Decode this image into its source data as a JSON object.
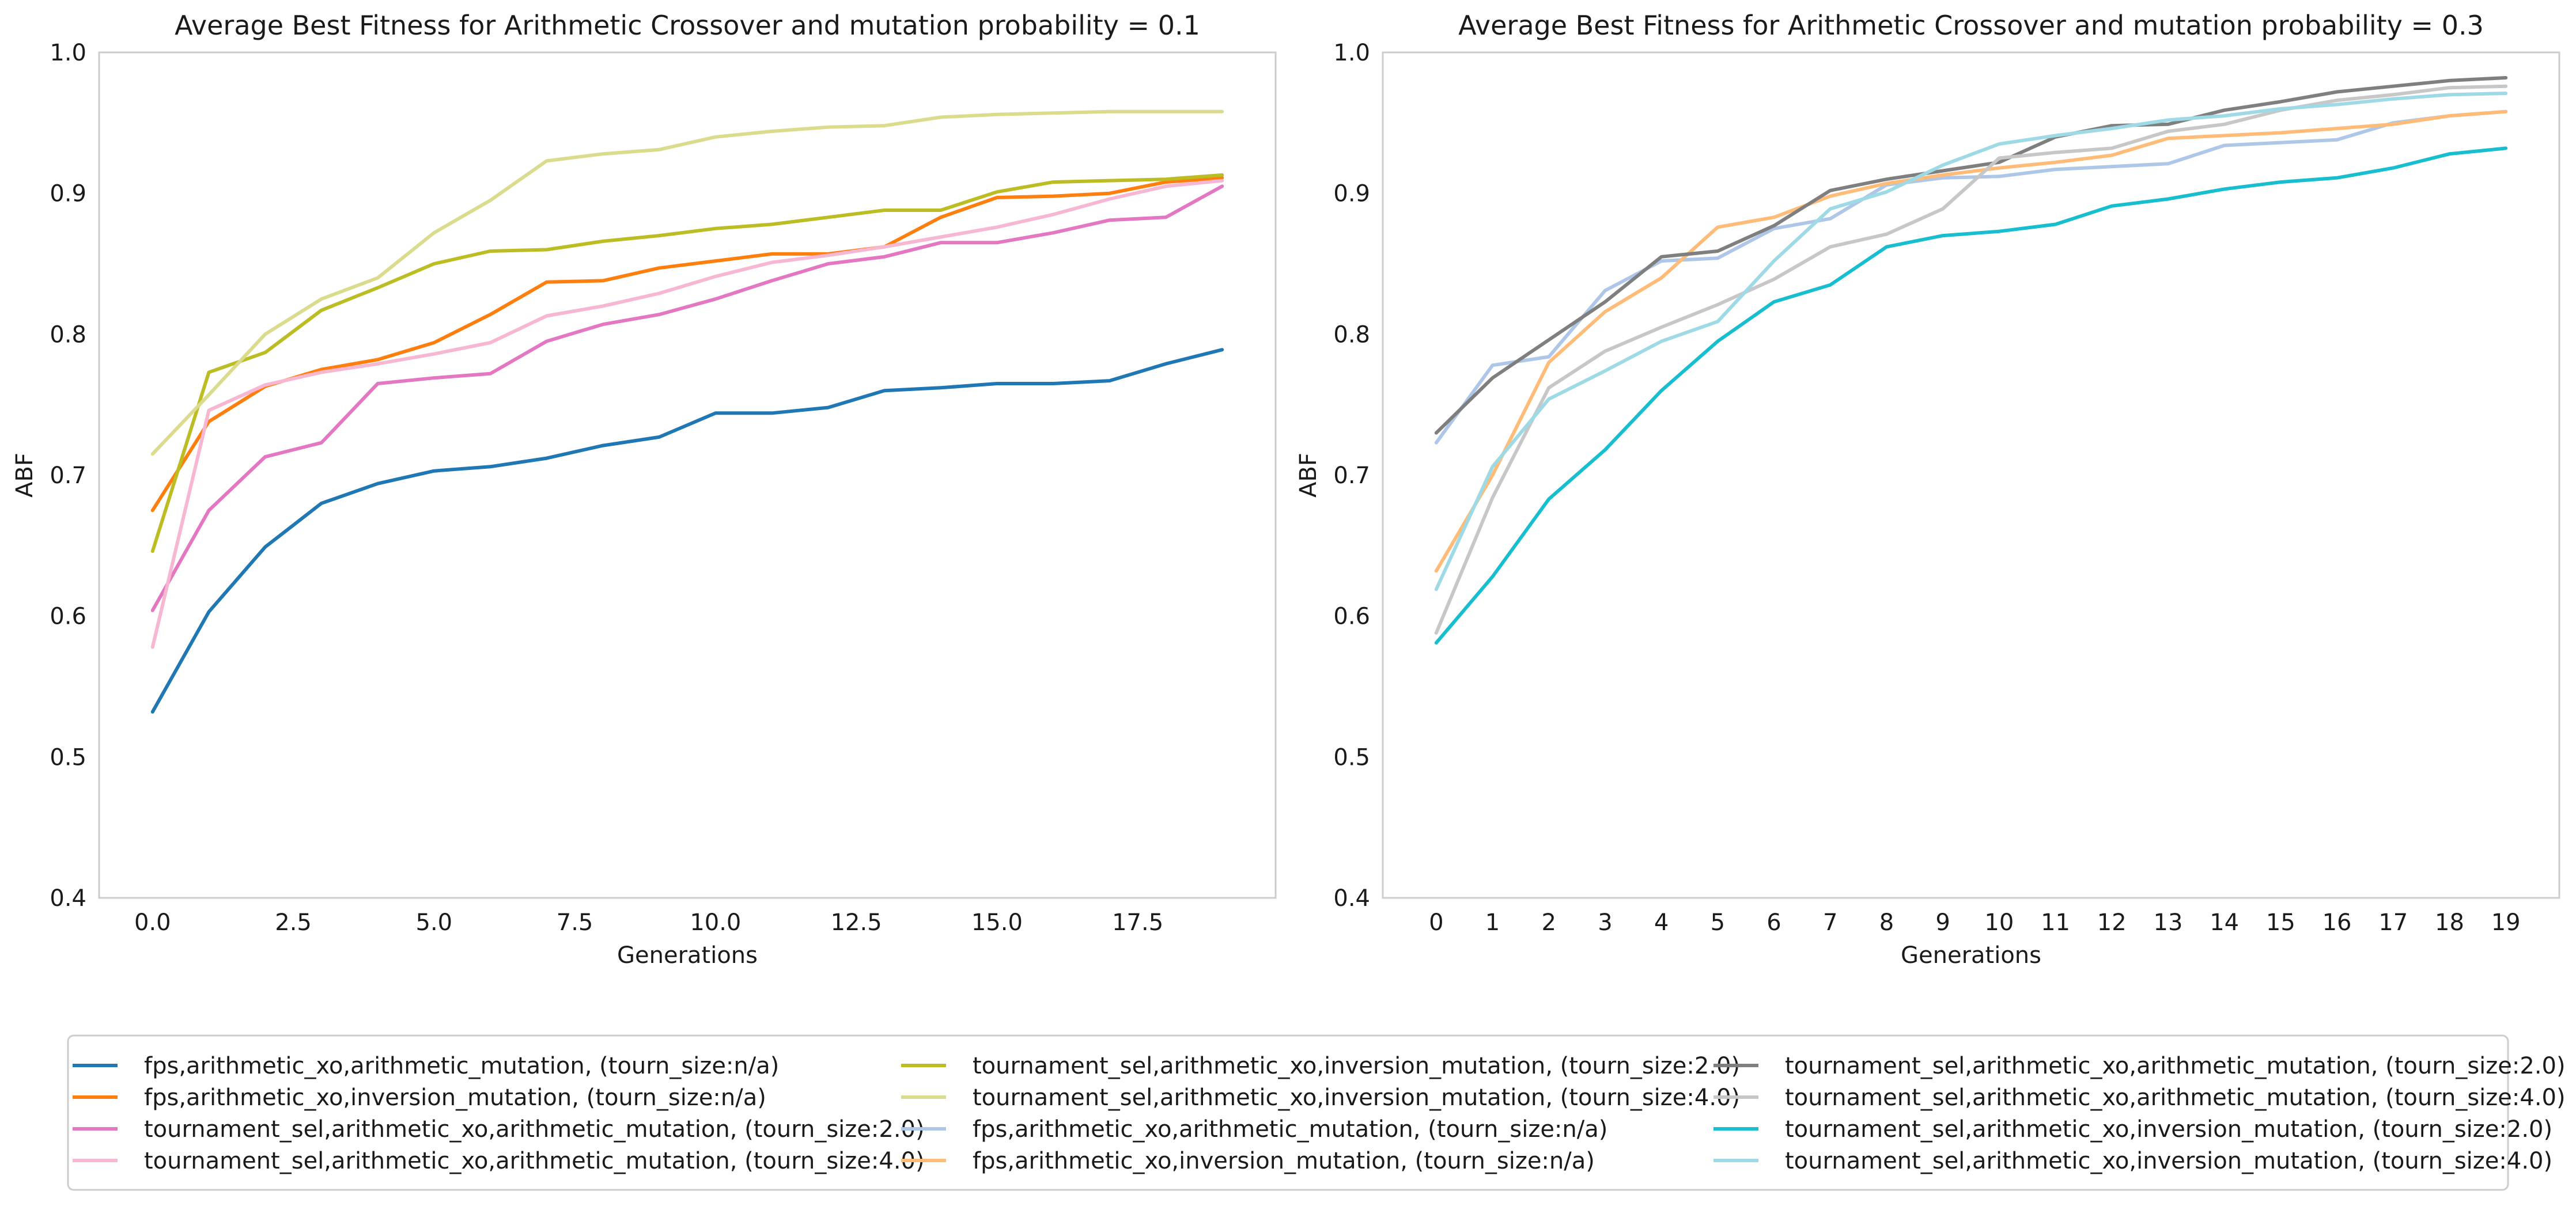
{
  "chart_data": [
    {
      "type": "line",
      "title": "Average Best Fitness for Arithmetic Crossover and mutation probability = 0.1",
      "xlabel": "Generations",
      "ylabel": "ABF",
      "xlim": [
        -0.95,
        19.95
      ],
      "ylim": [
        0.4,
        1.0
      ],
      "xticks": [
        0,
        2.5,
        5,
        7.5,
        10,
        12.5,
        15,
        17.5
      ],
      "xtick_labels": [
        "0.0",
        "2.5",
        "5.0",
        "7.5",
        "10.0",
        "12.5",
        "15.0",
        "17.5"
      ],
      "yticks": [
        0.4,
        0.5,
        0.6,
        0.7,
        0.8,
        0.9,
        1.0
      ],
      "ytick_labels": [
        "0.4",
        "0.5",
        "0.6",
        "0.7",
        "0.8",
        "0.9",
        "1.0"
      ],
      "grid": false,
      "x": [
        0,
        1,
        2,
        3,
        4,
        5,
        6,
        7,
        8,
        9,
        10,
        11,
        12,
        13,
        14,
        15,
        16,
        17,
        18,
        19
      ],
      "series": [
        {
          "name": "fps,arithmetic_xo,arithmetic_mutation, (tourn_size:n/a)",
          "color": "#1f77b4",
          "values": [
            0.532,
            0.603,
            0.649,
            0.68,
            0.694,
            0.703,
            0.706,
            0.712,
            0.721,
            0.727,
            0.744,
            0.744,
            0.748,
            0.76,
            0.762,
            0.765,
            0.765,
            0.767,
            0.779,
            0.789
          ]
        },
        {
          "name": "fps,arithmetic_xo,inversion_mutation, (tourn_size:n/a)",
          "color": "#ff7f0e",
          "values": [
            0.675,
            0.738,
            0.763,
            0.775,
            0.782,
            0.794,
            0.814,
            0.837,
            0.838,
            0.847,
            0.852,
            0.857,
            0.857,
            0.862,
            0.883,
            0.897,
            0.898,
            0.9,
            0.908,
            0.911
          ]
        },
        {
          "name": "tournament_sel,arithmetic_xo,arithmetic_mutation, (tourn_size:2.0)",
          "color": "#e377c2",
          "values": [
            0.604,
            0.675,
            0.713,
            0.723,
            0.765,
            0.769,
            0.772,
            0.795,
            0.807,
            0.814,
            0.825,
            0.838,
            0.85,
            0.855,
            0.865,
            0.865,
            0.872,
            0.881,
            0.883,
            0.905
          ]
        },
        {
          "name": "tournament_sel,arithmetic_xo,arithmetic_mutation, (tourn_size:4.0)",
          "color": "#f7b6d2",
          "values": [
            0.578,
            0.746,
            0.764,
            0.773,
            0.779,
            0.786,
            0.794,
            0.813,
            0.82,
            0.829,
            0.841,
            0.851,
            0.856,
            0.862,
            0.869,
            0.876,
            0.885,
            0.896,
            0.905,
            0.909
          ]
        },
        {
          "name": "tournament_sel,arithmetic_xo,inversion_mutation, (tourn_size:2.0)",
          "color": "#bcbd22",
          "values": [
            0.646,
            0.773,
            0.787,
            0.817,
            0.833,
            0.85,
            0.859,
            0.86,
            0.866,
            0.87,
            0.875,
            0.878,
            0.883,
            0.888,
            0.888,
            0.901,
            0.908,
            0.909,
            0.91,
            0.913
          ]
        },
        {
          "name": "tournament_sel,arithmetic_xo,inversion_mutation, (tourn_size:4.0)",
          "color": "#dbdb8d",
          "values": [
            0.715,
            0.757,
            0.8,
            0.825,
            0.84,
            0.872,
            0.895,
            0.923,
            0.928,
            0.931,
            0.94,
            0.944,
            0.947,
            0.948,
            0.954,
            0.956,
            0.957,
            0.958,
            0.958,
            0.958
          ]
        }
      ]
    },
    {
      "type": "line",
      "title": "Average Best Fitness for Arithmetic Crossover and mutation probability = 0.3",
      "xlabel": "Generations",
      "ylabel": "ABF",
      "xlim": [
        -0.95,
        19.95
      ],
      "ylim": [
        0.4,
        1.0
      ],
      "xticks": [
        0,
        1,
        2,
        3,
        4,
        5,
        6,
        7,
        8,
        9,
        10,
        11,
        12,
        13,
        14,
        15,
        16,
        17,
        18,
        19
      ],
      "xtick_labels": [
        "0",
        "1",
        "2",
        "3",
        "4",
        "5",
        "6",
        "7",
        "8",
        "9",
        "10",
        "11",
        "12",
        "13",
        "14",
        "15",
        "16",
        "17",
        "18",
        "19"
      ],
      "yticks": [
        0.4,
        0.5,
        0.6,
        0.7,
        0.8,
        0.9,
        1.0
      ],
      "ytick_labels": [
        "0.4",
        "0.5",
        "0.6",
        "0.7",
        "0.8",
        "0.9",
        "1.0"
      ],
      "grid": false,
      "x": [
        0,
        1,
        2,
        3,
        4,
        5,
        6,
        7,
        8,
        9,
        10,
        11,
        12,
        13,
        14,
        15,
        16,
        17,
        18,
        19
      ],
      "series": [
        {
          "name": "fps,arithmetic_xo,arithmetic_mutation, (tourn_size:n/a)",
          "color": "#aec7e8",
          "values": [
            0.723,
            0.778,
            0.784,
            0.831,
            0.852,
            0.854,
            0.875,
            0.882,
            0.906,
            0.911,
            0.912,
            0.917,
            0.919,
            0.921,
            0.934,
            0.936,
            0.938,
            0.95,
            0.955,
            0.958
          ]
        },
        {
          "name": "fps,arithmetic_xo,inversion_mutation, (tourn_size:n/a)",
          "color": "#ffbb78",
          "values": [
            0.632,
            0.7,
            0.78,
            0.816,
            0.84,
            0.876,
            0.883,
            0.898,
            0.907,
            0.913,
            0.918,
            0.922,
            0.927,
            0.939,
            0.941,
            0.943,
            0.946,
            0.949,
            0.955,
            0.958
          ]
        },
        {
          "name": "tournament_sel,arithmetic_xo,arithmetic_mutation, (tourn_size:2.0)",
          "color": "#7f7f7f",
          "values": [
            0.73,
            0.769,
            0.796,
            0.823,
            0.855,
            0.859,
            0.877,
            0.902,
            0.91,
            0.916,
            0.922,
            0.94,
            0.948,
            0.949,
            0.959,
            0.965,
            0.972,
            0.976,
            0.98,
            0.982
          ]
        },
        {
          "name": "tournament_sel,arithmetic_xo,arithmetic_mutation, (tourn_size:4.0)",
          "color": "#c7c7c7",
          "values": [
            0.588,
            0.684,
            0.762,
            0.788,
            0.805,
            0.821,
            0.839,
            0.862,
            0.871,
            0.889,
            0.925,
            0.929,
            0.932,
            0.944,
            0.949,
            0.959,
            0.966,
            0.97,
            0.975,
            0.976
          ]
        },
        {
          "name": "tournament_sel,arithmetic_xo,inversion_mutation, (tourn_size:2.0)",
          "color": "#17becf",
          "values": [
            0.581,
            0.628,
            0.683,
            0.718,
            0.76,
            0.795,
            0.823,
            0.835,
            0.862,
            0.87,
            0.873,
            0.878,
            0.891,
            0.896,
            0.903,
            0.908,
            0.911,
            0.918,
            0.928,
            0.932
          ]
        },
        {
          "name": "tournament_sel,arithmetic_xo,inversion_mutation, (tourn_size:4.0)",
          "color": "#9edae5",
          "values": [
            0.619,
            0.706,
            0.754,
            0.774,
            0.795,
            0.809,
            0.852,
            0.889,
            0.901,
            0.92,
            0.935,
            0.941,
            0.946,
            0.952,
            0.955,
            0.96,
            0.963,
            0.967,
            0.97,
            0.971
          ]
        }
      ]
    }
  ],
  "legend": {
    "placement": "bottom",
    "columns": 3,
    "items": [
      {
        "label": "fps,arithmetic_xo,arithmetic_mutation, (tourn_size:n/a)",
        "color": "#1f77b4"
      },
      {
        "label": "fps,arithmetic_xo,inversion_mutation, (tourn_size:n/a)",
        "color": "#ff7f0e"
      },
      {
        "label": "tournament_sel,arithmetic_xo,arithmetic_mutation, (tourn_size:2.0)",
        "color": "#e377c2"
      },
      {
        "label": "tournament_sel,arithmetic_xo,arithmetic_mutation, (tourn_size:4.0)",
        "color": "#f7b6d2"
      },
      {
        "label": "tournament_sel,arithmetic_xo,inversion_mutation, (tourn_size:2.0)",
        "color": "#bcbd22"
      },
      {
        "label": "tournament_sel,arithmetic_xo,inversion_mutation, (tourn_size:4.0)",
        "color": "#dbdb8d"
      },
      {
        "label": "fps,arithmetic_xo,arithmetic_mutation, (tourn_size:n/a)",
        "color": "#aec7e8"
      },
      {
        "label": "fps,arithmetic_xo,inversion_mutation, (tourn_size:n/a)",
        "color": "#ffbb78"
      },
      {
        "label": "tournament_sel,arithmetic_xo,arithmetic_mutation, (tourn_size:2.0)",
        "color": "#7f7f7f"
      },
      {
        "label": "tournament_sel,arithmetic_xo,arithmetic_mutation, (tourn_size:4.0)",
        "color": "#c7c7c7"
      },
      {
        "label": "tournament_sel,arithmetic_xo,inversion_mutation, (tourn_size:2.0)",
        "color": "#17becf"
      },
      {
        "label": "tournament_sel,arithmetic_xo,inversion_mutation, (tourn_size:4.0)",
        "color": "#9edae5"
      }
    ]
  }
}
